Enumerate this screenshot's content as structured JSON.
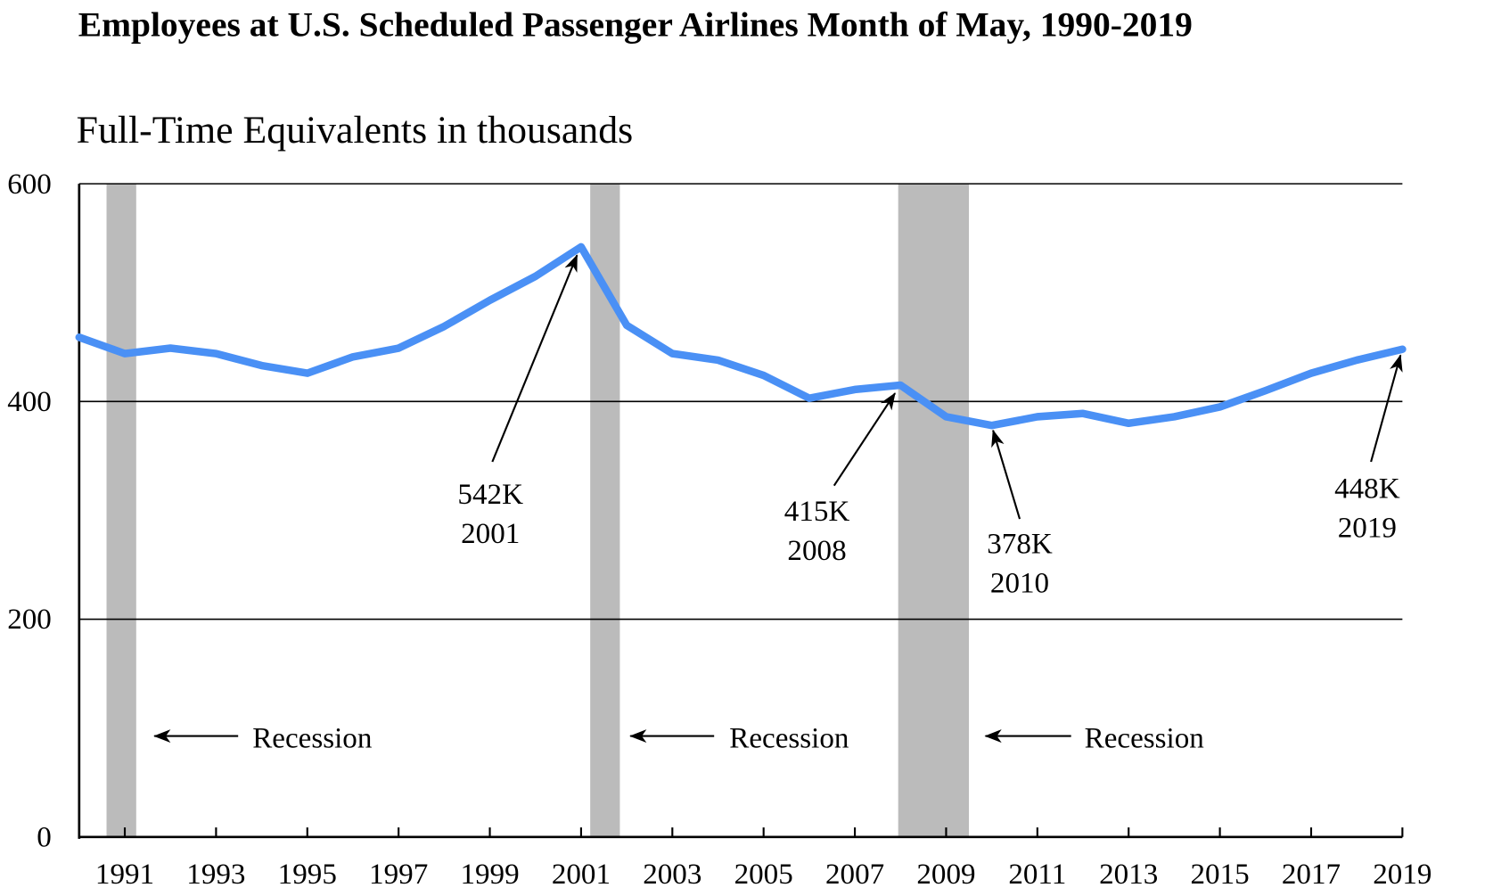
{
  "chart_data": {
    "type": "line",
    "title": "Employees at U.S. Scheduled Passenger Airlines Month of May, 1990-2019",
    "subtitle": "Full-Time Equivalents in thousands",
    "xlabel": "",
    "ylabel": "",
    "ylim": [
      0,
      600
    ],
    "xlim": [
      1990,
      2019
    ],
    "yticks": [
      0,
      200,
      400,
      600
    ],
    "xticks": [
      1991,
      1993,
      1995,
      1997,
      1999,
      2001,
      2003,
      2005,
      2007,
      2009,
      2011,
      2013,
      2015,
      2017,
      2019
    ],
    "grid": "horizontal",
    "line_color": "#4a90f5",
    "recession_color": "#bbbbbb",
    "x": [
      1990,
      1991,
      1992,
      1993,
      1994,
      1995,
      1996,
      1997,
      1998,
      1999,
      2000,
      2001,
      2002,
      2003,
      2004,
      2005,
      2006,
      2007,
      2008,
      2009,
      2010,
      2011,
      2012,
      2013,
      2014,
      2015,
      2016,
      2017,
      2018,
      2019
    ],
    "values": [
      459,
      444,
      449,
      444,
      433,
      426,
      441,
      449,
      469,
      493,
      515,
      542,
      470,
      444,
      438,
      424,
      403,
      411,
      415,
      386,
      378,
      386,
      389,
      380,
      386,
      395,
      410,
      426,
      438,
      448
    ],
    "recessions": [
      {
        "start": 1990.6,
        "end": 1991.25,
        "label": "Recession"
      },
      {
        "start": 2001.2,
        "end": 2001.85,
        "label": "Recession"
      },
      {
        "start": 2007.95,
        "end": 2009.5,
        "label": "Recession"
      }
    ],
    "annotations": [
      {
        "year": 2001,
        "value": "542K",
        "label": "2001"
      },
      {
        "year": 2008,
        "value": "415K",
        "label": "2008"
      },
      {
        "year": 2010,
        "value": "378K",
        "label": "2010"
      },
      {
        "year": 2019,
        "value": "448K",
        "label": "2019"
      }
    ]
  }
}
